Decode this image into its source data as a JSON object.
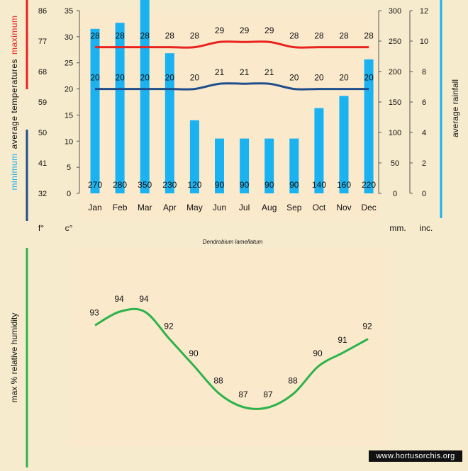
{
  "chart_data": [
    {
      "type": "bar",
      "title": "Dendrobium lamellatum",
      "categories": [
        "Jan",
        "Feb",
        "Mar",
        "Apr",
        "May",
        "Jun",
        "Jul",
        "Aug",
        "Sep",
        "Oct",
        "Nov",
        "Dec"
      ],
      "series": [
        {
          "name": "average rainfall",
          "kind": "bar",
          "axis": "rain_mm",
          "color": "#1ab2f0",
          "values": [
            270,
            280,
            350,
            230,
            120,
            90,
            90,
            90,
            90,
            140,
            160,
            220
          ]
        },
        {
          "name": "maximum",
          "kind": "line",
          "axis": "celsius",
          "color": "#e8231f",
          "values": [
            28,
            28,
            28,
            28,
            28,
            29,
            29,
            29,
            28,
            28,
            28,
            28
          ]
        },
        {
          "name": "minimum",
          "kind": "line",
          "axis": "celsius",
          "color": "#1f4e8c",
          "values": [
            20,
            20,
            20,
            20,
            20,
            21,
            21,
            21,
            20,
            20,
            20,
            20
          ]
        }
      ],
      "axes": {
        "fahrenheit": {
          "unit": "f°",
          "ticks": [
            32,
            41,
            50,
            59,
            68,
            77,
            86
          ]
        },
        "celsius": {
          "unit": "c°",
          "ticks": [
            0,
            5,
            10,
            15,
            20,
            25,
            30,
            35
          ],
          "ylim": [
            0,
            35
          ]
        },
        "rain_mm": {
          "unit": "mm.",
          "ticks": [
            0,
            50,
            100,
            150,
            200,
            250,
            300
          ],
          "ylim": [
            0,
            300
          ]
        },
        "rain_in": {
          "unit": "inc.",
          "ticks": [
            0,
            2,
            4,
            6,
            8,
            10,
            12
          ]
        }
      },
      "ylabel_left": {
        "minimum": "minimum",
        "middle": "average temperatures",
        "maximum": "maximum"
      },
      "ylabel_right": "average rainfall",
      "grid": false
    },
    {
      "type": "line",
      "categories": [
        "Jan",
        "Feb",
        "Mar",
        "Apr",
        "May",
        "Jun",
        "Jul",
        "Aug",
        "Sep",
        "Oct",
        "Nov",
        "Dec"
      ],
      "series": [
        {
          "name": "max % relative humidity",
          "color": "#2db34a",
          "values": [
            93,
            94,
            94,
            92,
            90,
            88,
            87,
            87,
            88,
            90,
            91,
            92
          ]
        }
      ],
      "ylabel": "max % relative humidity",
      "ylim": [
        86,
        95
      ]
    }
  ],
  "watermark": "www.hortusorchis.org",
  "colors": {
    "background": "#f7ebcd",
    "panel": "#fbe9cc",
    "max_line": "#e8231f",
    "min_line": "#1f4e8c",
    "rain": "#1ab2f0",
    "humidity": "#2db34a"
  }
}
